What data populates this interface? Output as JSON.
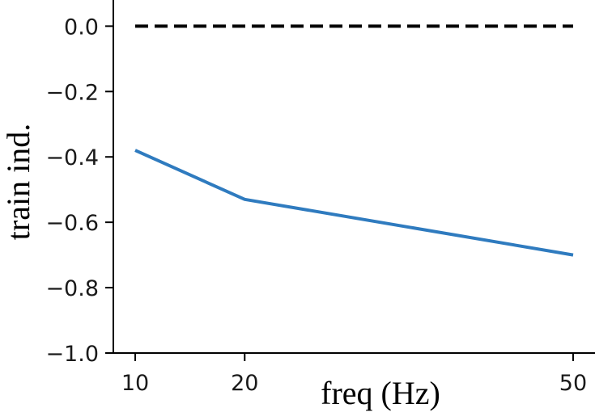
{
  "chart_data": {
    "type": "line",
    "title": "",
    "xlabel": "freq (Hz)",
    "ylabel": "train ind.",
    "x_ticks": [
      10,
      20,
      50
    ],
    "y_ticks": [
      0.0,
      -0.2,
      -0.4,
      -0.6,
      -0.8,
      -1.0
    ],
    "y_tick_labels": [
      "0.0",
      "−0.2",
      "−0.4",
      "−0.6",
      "−0.8",
      "−1.0"
    ],
    "xlim": [
      8,
      52
    ],
    "ylim": [
      -1.0,
      0.08
    ],
    "grid": false,
    "series": [
      {
        "x": [
          10,
          20,
          50
        ],
        "y": [
          -0.38,
          -0.53,
          -0.7
        ],
        "color": "#2f7bbf",
        "style": "solid"
      },
      {
        "x": [
          10,
          50
        ],
        "y": [
          0.0,
          0.0
        ],
        "color": "#000000",
        "style": "dashed"
      }
    ]
  }
}
